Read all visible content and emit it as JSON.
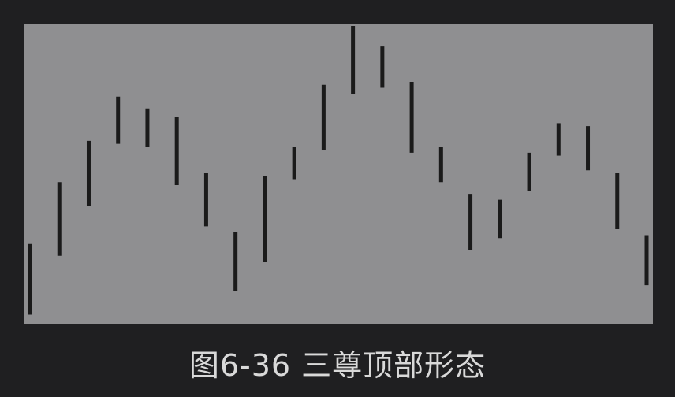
{
  "caption": "图6-36 三尊顶部形态",
  "colors": {
    "background": "#1f1f21",
    "plot_background": "#8f8f91",
    "bar_color": "#1a1a1a",
    "caption_text": "#d9d9d9"
  },
  "chart_data": {
    "type": "bar",
    "style": "ohlc-range-bars",
    "title": "",
    "xlabel": "",
    "ylabel": "",
    "grid": false,
    "ylim": [
      0,
      100
    ],
    "bars": [
      {
        "low": 2,
        "high": 26
      },
      {
        "low": 22,
        "high": 47
      },
      {
        "low": 39,
        "high": 61
      },
      {
        "low": 60,
        "high": 76
      },
      {
        "low": 59,
        "high": 72
      },
      {
        "low": 46,
        "high": 69
      },
      {
        "low": 32,
        "high": 50
      },
      {
        "low": 10,
        "high": 30
      },
      {
        "low": 20,
        "high": 49
      },
      {
        "low": 48,
        "high": 59
      },
      {
        "low": 58,
        "high": 80
      },
      {
        "low": 77,
        "high": 100
      },
      {
        "low": 79,
        "high": 93
      },
      {
        "low": 57,
        "high": 81
      },
      {
        "low": 47,
        "high": 59
      },
      {
        "low": 24,
        "high": 43
      },
      {
        "low": 28,
        "high": 41
      },
      {
        "low": 44,
        "high": 57
      },
      {
        "low": 56,
        "high": 67
      },
      {
        "low": 51,
        "high": 66
      },
      {
        "low": 31,
        "high": 50
      },
      {
        "low": 12,
        "high": 29
      }
    ]
  }
}
